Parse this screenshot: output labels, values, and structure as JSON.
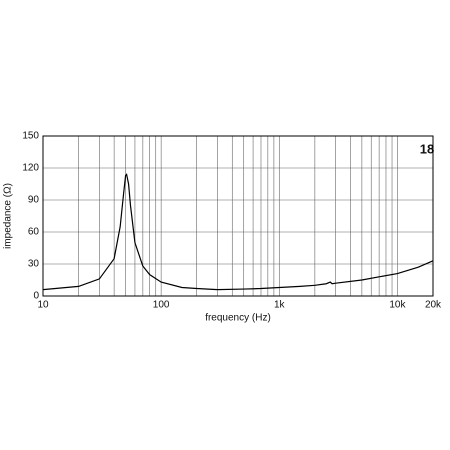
{
  "chart_data": {
    "type": "line",
    "xscale": "log",
    "grid": true,
    "xlabel": "frequency (Hz)",
    "ylabel": "impedance (Ω)",
    "logo": "18",
    "xlim": [
      10,
      20000
    ],
    "ylim": [
      0,
      150
    ],
    "xticks": [
      10,
      100,
      {
        "value": 1000,
        "label": "1k"
      },
      {
        "value": 10000,
        "label": "10k"
      },
      {
        "value": 20000,
        "label": "20k"
      }
    ],
    "xgrid": [
      20,
      30,
      40,
      50,
      60,
      70,
      80,
      90,
      200,
      300,
      400,
      500,
      600,
      700,
      800,
      900,
      2000,
      3000,
      4000,
      5000,
      6000,
      7000,
      8000,
      9000
    ],
    "yticks": [
      0,
      30,
      60,
      90,
      120,
      150
    ],
    "series": [
      {
        "color": "#000000",
        "x": [
          10,
          20,
          30,
          40,
          45,
          48,
          50,
          51,
          53,
          55,
          60,
          70,
          80,
          100,
          150,
          200,
          300,
          500,
          700,
          1000,
          1500,
          2000,
          2500,
          2700,
          2800,
          3000,
          5000,
          7000,
          10000,
          15000,
          20000
        ],
        "values": [
          6,
          9,
          16,
          35,
          65,
          95,
          113,
          114,
          105,
          85,
          50,
          28,
          20,
          13,
          8,
          7,
          6,
          6.5,
          7,
          8,
          9,
          10,
          11.5,
          13,
          11.5,
          12,
          15,
          18,
          21,
          27,
          33
        ]
      }
    ]
  }
}
